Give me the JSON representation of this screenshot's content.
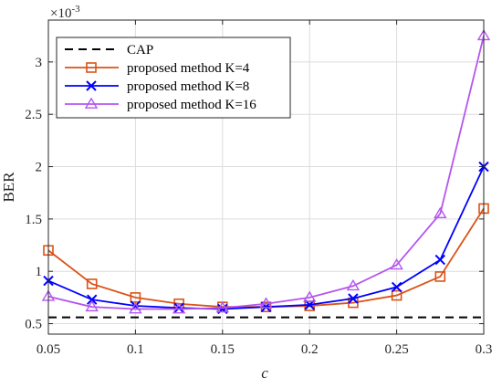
{
  "chart_data": {
    "type": "line",
    "title": "",
    "xlabel": "c",
    "ylabel": "BER",
    "y_exponent_label": "×10",
    "y_exponent_power": "-3",
    "xlim": [
      0.05,
      0.3
    ],
    "ylim": [
      0.4,
      3.4
    ],
    "x_ticks": [
      "0.05",
      "0.1",
      "0.15",
      "0.2",
      "0.25",
      "0.3"
    ],
    "x_tick_values": [
      0.05,
      0.1,
      0.15,
      0.2,
      0.25,
      0.3
    ],
    "y_ticks": [
      "0.5",
      "1",
      "1.5",
      "2",
      "2.5",
      "3"
    ],
    "y_tick_values": [
      0.5,
      1,
      1.5,
      2,
      2.5,
      3
    ],
    "grid": true,
    "legend_position": "top-left",
    "x": [
      0.05,
      0.075,
      0.1,
      0.125,
      0.15,
      0.175,
      0.2,
      0.225,
      0.25,
      0.275,
      0.3
    ],
    "reference": {
      "name": "CAP",
      "value": 0.56,
      "color": "#000000"
    },
    "series": [
      {
        "name": "proposed method  K=4",
        "color": "#D95319",
        "marker": "square",
        "values": [
          1.2,
          0.88,
          0.75,
          0.69,
          0.66,
          0.66,
          0.67,
          0.7,
          0.77,
          0.95,
          1.6
        ]
      },
      {
        "name": "proposed method  K=8",
        "color": "#0000FF",
        "marker": "x",
        "values": [
          0.91,
          0.73,
          0.67,
          0.65,
          0.64,
          0.66,
          0.68,
          0.74,
          0.85,
          1.11,
          2.0
        ]
      },
      {
        "name": "proposed method  K=16",
        "color": "#B455F0",
        "marker": "triangle",
        "values": [
          0.76,
          0.66,
          0.64,
          0.64,
          0.65,
          0.69,
          0.75,
          0.86,
          1.06,
          1.55,
          3.25
        ]
      }
    ]
  }
}
